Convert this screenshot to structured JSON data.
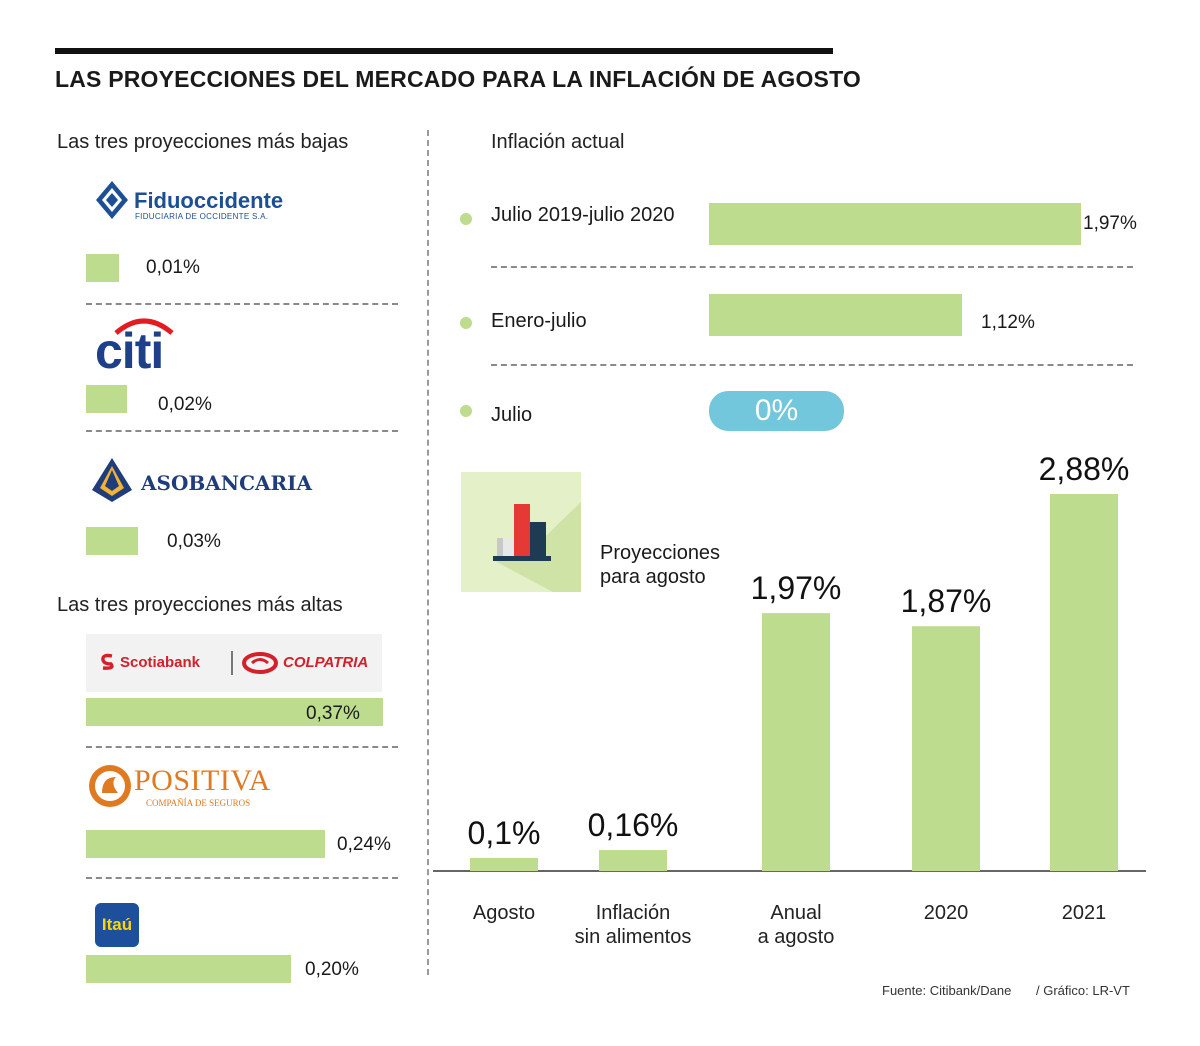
{
  "title": "LAS PROYECCIONES DEL MERCADO PARA LA INFLACIÓN DE AGOSTO",
  "left_panel": {
    "low_heading": "Las tres proyecciones más bajas",
    "high_heading": "Las tres proyecciones más altas",
    "low": [
      {
        "entity": "Fiduoccidente",
        "logo_text": "Fiduoccidente",
        "logo_subtext": "FIDUCIARIA DE OCCIDENTE S.A.",
        "value": 0.01,
        "label": "0,01%"
      },
      {
        "entity": "Citi",
        "logo_text": "citi",
        "value": 0.02,
        "label": "0,02%"
      },
      {
        "entity": "Asobancaria",
        "logo_text": "ASOBANCARIA",
        "value": 0.03,
        "label": "0,03%"
      }
    ],
    "high": [
      {
        "entity": "Scotiabank Colpatria",
        "logo_text_a": "Scotiabank",
        "logo_text_b": "COLPATRIA",
        "value": 0.37,
        "label": "0,37%"
      },
      {
        "entity": "Positiva",
        "logo_text": "POSITIVA",
        "logo_subtext": "COMPAÑÍA DE SEGUROS",
        "value": 0.24,
        "label": "0,24%"
      },
      {
        "entity": "Itaú",
        "logo_text": "Itaú",
        "value": 0.2,
        "label": "0,20%"
      }
    ]
  },
  "current": {
    "heading": "Inflación actual",
    "rows": [
      {
        "label": "Julio 2019-julio 2020",
        "value": 1.97,
        "display": "1,97%"
      },
      {
        "label": "Enero-julio",
        "value": 1.12,
        "display": "1,12%"
      },
      {
        "label": "Julio",
        "value": 0,
        "display": "0%"
      }
    ]
  },
  "projections": {
    "label": "Proyecciones para agosto",
    "label_line1": "Proyecciones",
    "label_line2": "para agosto"
  },
  "chart_data": {
    "type": "bar",
    "title": "Proyecciones para agosto",
    "categories": [
      "Agosto",
      "Inflación sin alimentos",
      "Anual a agosto",
      "2020",
      "2021"
    ],
    "category_lines": [
      [
        "Agosto"
      ],
      [
        "Inflación",
        "sin alimentos"
      ],
      [
        "Anual",
        "a agosto"
      ],
      [
        "2020"
      ],
      [
        "2021"
      ]
    ],
    "values": [
      0.1,
      0.16,
      1.97,
      1.87,
      2.88
    ],
    "labels": [
      "0,1%",
      "0,16%",
      "1,97%",
      "1,87%",
      "2,88%"
    ],
    "ylim": [
      0,
      2.88
    ],
    "xlabel": "",
    "ylabel": ""
  },
  "source": {
    "fuente": "Fuente: Citibank/Dane",
    "grafico": "/ Gráfico: LR-VT"
  },
  "colors": {
    "bar": "#bddc8d",
    "pill": "#72c7dc",
    "icon_bg": "#e3f0c8"
  }
}
